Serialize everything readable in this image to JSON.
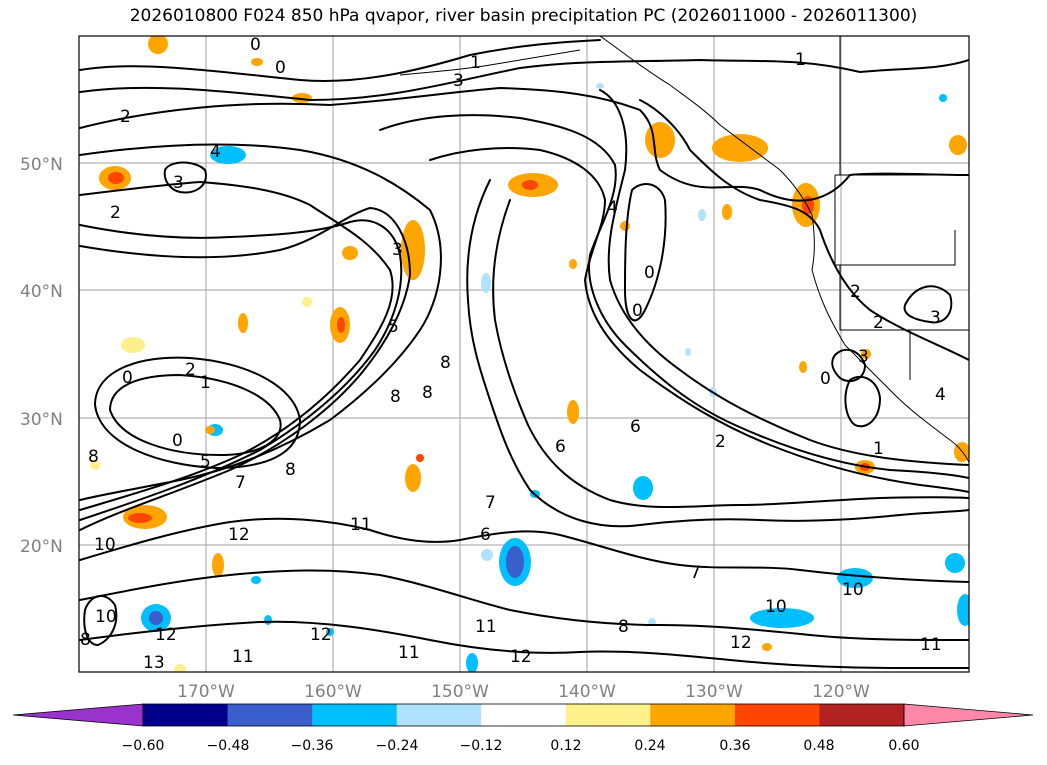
{
  "map": {
    "title": "2026010800 F024 850 hPa qvapor, river basin precipitation PC (2026011000 - 2026011300)",
    "lat_labels": [
      "50°N",
      "40°N",
      "30°N",
      "20°N"
    ],
    "lon_labels": [
      "170°W",
      "160°W",
      "150°W",
      "140°W",
      "130°W",
      "120°W"
    ],
    "extent": {
      "lon_min": -180,
      "lon_max": -110,
      "lat_min": 10,
      "lat_max": 60
    },
    "contour_variable": "850 hPa qvapor",
    "shaded_variable": "river basin precipitation PC",
    "contour_labels": [
      "0",
      "1",
      "2",
      "3",
      "4",
      "5",
      "6",
      "7",
      "8",
      "10",
      "11",
      "12",
      "13"
    ]
  },
  "colorbar": {
    "extend": "both",
    "bins": [
      {
        "color": "#9933cc"
      },
      {
        "color": "#00008b"
      },
      {
        "color": "#3a5fcd"
      },
      {
        "color": "#00bfff"
      },
      {
        "color": "#b0e2ff"
      },
      {
        "color": "#ffffff"
      },
      {
        "color": "#fff08c"
      },
      {
        "color": "#ffa500"
      },
      {
        "color": "#ff4500"
      },
      {
        "color": "#b22222"
      },
      {
        "color": "#ff88aa"
      }
    ],
    "tick_labels": [
      "−0.60",
      "−0.48",
      "−0.36",
      "−0.24",
      "−0.12",
      "0.12",
      "0.24",
      "0.36",
      "0.48",
      "0.60"
    ]
  }
}
